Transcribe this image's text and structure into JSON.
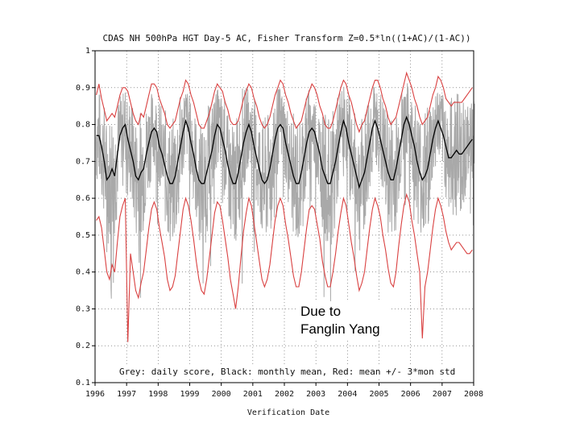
{
  "chart_data": {
    "type": "line",
    "title": "CDAS NH 500hPa HGT Day-5 AC,  Fisher Transform Z=0.5*ln((1+AC)/(1-AC))",
    "xlabel": "Verification Date",
    "ylabel": "",
    "xlim": [
      1996,
      2008
    ],
    "ylim": [
      0.1,
      1.0
    ],
    "x_ticks": [
      "1996",
      "1997",
      "1998",
      "1999",
      "2000",
      "2001",
      "2002",
      "2003",
      "2004",
      "2005",
      "2006",
      "2007",
      "2008"
    ],
    "y_ticks": [
      "0.1",
      "0.2",
      "0.3",
      "0.4",
      "0.5",
      "0.6",
      "0.7",
      "0.8",
      "0.9",
      "1"
    ],
    "legend_text": "Grey: daily score, Black: monthly mean, Red: mean +/- 3*mon std",
    "annotation": [
      "Due to",
      "Fanglin Yang"
    ],
    "series": [
      {
        "name": "monthly mean",
        "color": "#000000",
        "x_start": 1996.04,
        "x_step": 0.08333,
        "values": [
          0.77,
          0.77,
          0.74,
          0.7,
          0.65,
          0.66,
          0.68,
          0.66,
          0.72,
          0.77,
          0.79,
          0.8,
          0.76,
          0.73,
          0.7,
          0.66,
          0.65,
          0.67,
          0.68,
          0.72,
          0.75,
          0.78,
          0.79,
          0.78,
          0.74,
          0.72,
          0.69,
          0.66,
          0.64,
          0.64,
          0.66,
          0.7,
          0.74,
          0.78,
          0.81,
          0.79,
          0.75,
          0.72,
          0.68,
          0.65,
          0.64,
          0.64,
          0.67,
          0.7,
          0.73,
          0.77,
          0.8,
          0.79,
          0.76,
          0.73,
          0.69,
          0.66,
          0.64,
          0.64,
          0.67,
          0.71,
          0.75,
          0.78,
          0.8,
          0.78,
          0.74,
          0.71,
          0.68,
          0.65,
          0.64,
          0.65,
          0.68,
          0.72,
          0.76,
          0.79,
          0.8,
          0.79,
          0.75,
          0.72,
          0.69,
          0.66,
          0.64,
          0.64,
          0.67,
          0.71,
          0.75,
          0.78,
          0.79,
          0.78,
          0.75,
          0.72,
          0.68,
          0.66,
          0.64,
          0.64,
          0.67,
          0.7,
          0.74,
          0.78,
          0.81,
          0.79,
          0.75,
          0.72,
          0.69,
          0.66,
          0.63,
          0.65,
          0.67,
          0.71,
          0.75,
          0.79,
          0.81,
          0.79,
          0.76,
          0.73,
          0.7,
          0.67,
          0.65,
          0.65,
          0.68,
          0.72,
          0.76,
          0.8,
          0.82,
          0.8,
          0.77,
          0.74,
          0.7,
          0.67,
          0.65,
          0.66,
          0.68,
          0.72,
          0.76,
          0.79,
          0.81,
          0.79,
          0.77,
          0.74,
          0.71,
          0.71,
          0.72,
          0.73,
          0.72,
          0.72,
          0.73,
          0.74,
          0.75,
          0.76
        ]
      },
      {
        "name": "mean + 3*mon std",
        "color": "#d94040",
        "x_start": 1996.04,
        "x_step": 0.08333,
        "values": [
          0.88,
          0.91,
          0.87,
          0.84,
          0.81,
          0.82,
          0.83,
          0.82,
          0.85,
          0.88,
          0.9,
          0.9,
          0.89,
          0.86,
          0.83,
          0.81,
          0.8,
          0.83,
          0.82,
          0.85,
          0.88,
          0.91,
          0.91,
          0.9,
          0.87,
          0.85,
          0.83,
          0.8,
          0.79,
          0.8,
          0.81,
          0.84,
          0.87,
          0.89,
          0.92,
          0.91,
          0.88,
          0.86,
          0.83,
          0.8,
          0.79,
          0.79,
          0.81,
          0.83,
          0.86,
          0.89,
          0.91,
          0.9,
          0.89,
          0.86,
          0.84,
          0.81,
          0.8,
          0.8,
          0.81,
          0.84,
          0.87,
          0.89,
          0.91,
          0.9,
          0.87,
          0.85,
          0.82,
          0.8,
          0.79,
          0.8,
          0.82,
          0.85,
          0.88,
          0.9,
          0.92,
          0.91,
          0.88,
          0.86,
          0.83,
          0.81,
          0.79,
          0.8,
          0.81,
          0.84,
          0.87,
          0.89,
          0.91,
          0.9,
          0.88,
          0.85,
          0.83,
          0.8,
          0.79,
          0.79,
          0.81,
          0.84,
          0.87,
          0.9,
          0.92,
          0.91,
          0.88,
          0.86,
          0.83,
          0.8,
          0.78,
          0.8,
          0.81,
          0.84,
          0.87,
          0.9,
          0.92,
          0.92,
          0.9,
          0.87,
          0.85,
          0.82,
          0.8,
          0.81,
          0.82,
          0.85,
          0.88,
          0.91,
          0.94,
          0.92,
          0.9,
          0.87,
          0.85,
          0.82,
          0.8,
          0.81,
          0.82,
          0.85,
          0.88,
          0.9,
          0.93,
          0.92,
          0.9,
          0.87,
          0.86,
          0.85,
          0.86,
          0.86,
          0.86,
          0.86,
          0.87,
          0.88,
          0.89,
          0.9
        ]
      },
      {
        "name": "mean - 3*mon std",
        "color": "#d94040",
        "x_start": 1996.04,
        "x_step": 0.08333,
        "values": [
          0.54,
          0.55,
          0.52,
          0.46,
          0.4,
          0.38,
          0.42,
          0.4,
          0.48,
          0.55,
          0.58,
          0.6,
          0.21,
          0.45,
          0.4,
          0.35,
          0.33,
          0.37,
          0.4,
          0.46,
          0.52,
          0.57,
          0.59,
          0.57,
          0.52,
          0.48,
          0.44,
          0.38,
          0.35,
          0.36,
          0.39,
          0.45,
          0.51,
          0.57,
          0.6,
          0.58,
          0.54,
          0.49,
          0.43,
          0.38,
          0.35,
          0.34,
          0.38,
          0.44,
          0.5,
          0.56,
          0.59,
          0.58,
          0.54,
          0.49,
          0.44,
          0.38,
          0.34,
          0.3,
          0.36,
          0.44,
          0.51,
          0.56,
          0.6,
          0.58,
          0.53,
          0.48,
          0.43,
          0.38,
          0.36,
          0.38,
          0.42,
          0.48,
          0.54,
          0.58,
          0.6,
          0.58,
          0.53,
          0.49,
          0.44,
          0.39,
          0.36,
          0.36,
          0.4,
          0.46,
          0.52,
          0.57,
          0.58,
          0.57,
          0.53,
          0.49,
          0.43,
          0.39,
          0.36,
          0.36,
          0.4,
          0.45,
          0.51,
          0.56,
          0.6,
          0.58,
          0.53,
          0.48,
          0.44,
          0.39,
          0.35,
          0.37,
          0.4,
          0.46,
          0.52,
          0.57,
          0.6,
          0.58,
          0.55,
          0.5,
          0.46,
          0.41,
          0.37,
          0.36,
          0.4,
          0.47,
          0.53,
          0.58,
          0.61,
          0.59,
          0.54,
          0.5,
          0.45,
          0.4,
          0.22,
          0.36,
          0.4,
          0.46,
          0.52,
          0.57,
          0.6,
          0.58,
          0.55,
          0.51,
          0.48,
          0.46,
          0.47,
          0.48,
          0.48,
          0.47,
          0.46,
          0.45,
          0.45,
          0.46
        ]
      },
      {
        "name": "daily score",
        "color": "#a9a9a9",
        "note": "envelope approximated by mean +/- amplitude",
        "amplitude": [
          0.14,
          0.13,
          0.15,
          0.16,
          0.18,
          0.17,
          0.16,
          0.17,
          0.14,
          0.11,
          0.1,
          0.11,
          0.14,
          0.15,
          0.16,
          0.17,
          0.18,
          0.17,
          0.16,
          0.14,
          0.13,
          0.11,
          0.1,
          0.11,
          0.13,
          0.14,
          0.16,
          0.17,
          0.18,
          0.18,
          0.17,
          0.15,
          0.13,
          0.11,
          0.1,
          0.11,
          0.13,
          0.14,
          0.16,
          0.17,
          0.18,
          0.18,
          0.17,
          0.15,
          0.13,
          0.11,
          0.1,
          0.11
        ]
      }
    ]
  }
}
